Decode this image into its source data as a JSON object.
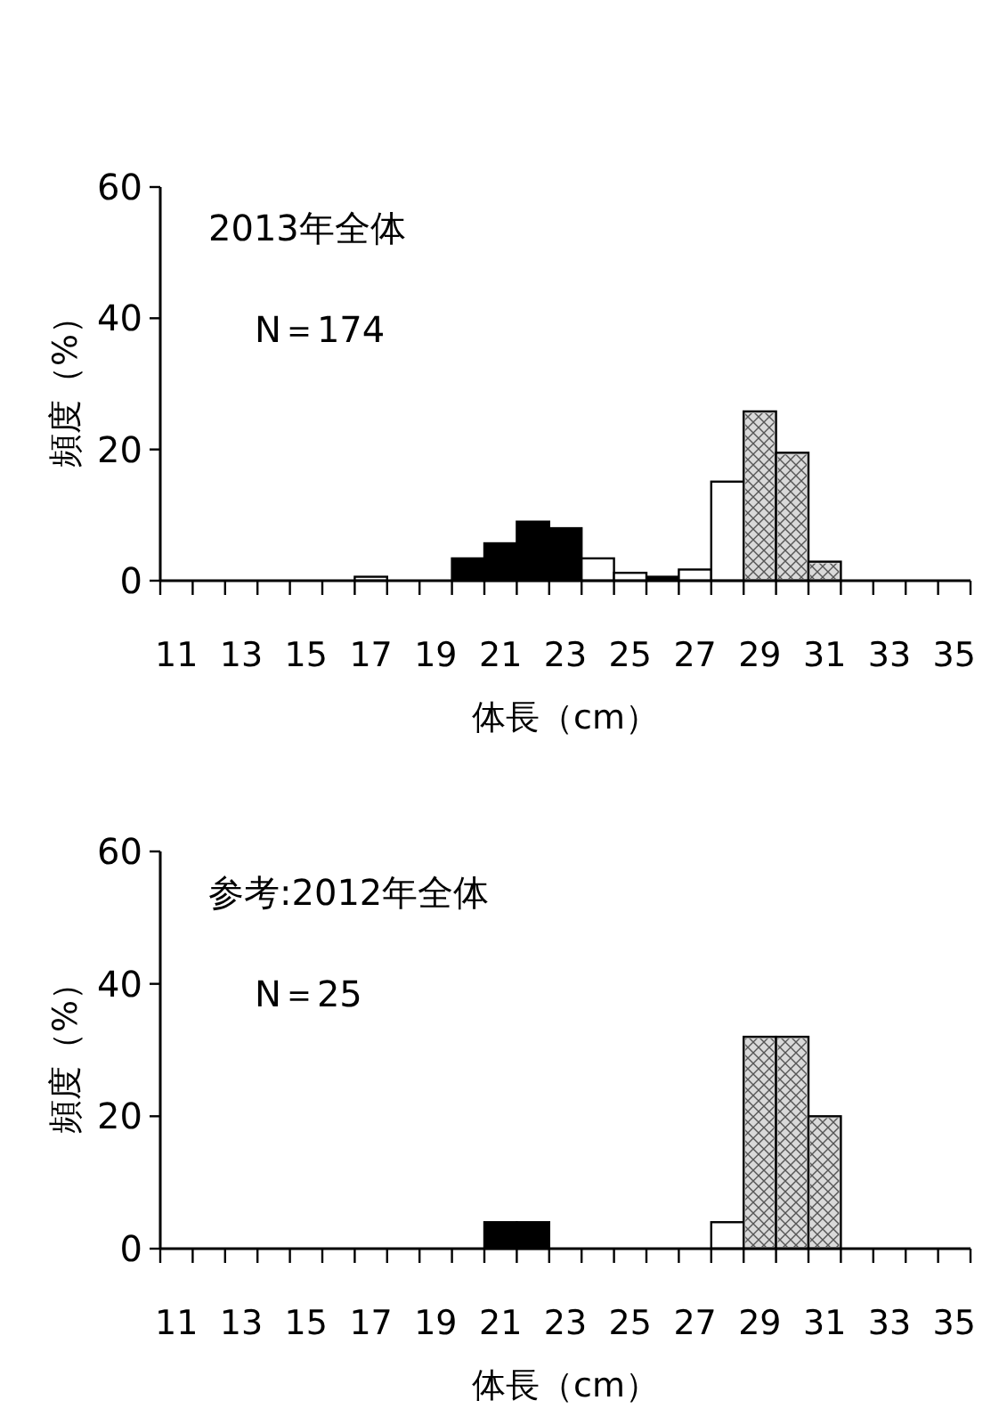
{
  "chart_data": [
    {
      "type": "bar",
      "xlabel": "体長（cm）",
      "ylabel": "頻度（%）",
      "ylim": [
        0,
        60
      ],
      "yticks": [
        0,
        20,
        40,
        60
      ],
      "annotations": [
        "2013年全体",
        "N＝174"
      ],
      "categories": [
        "11",
        null,
        "13",
        null,
        "15",
        null,
        "17",
        null,
        "19",
        null,
        "21",
        null,
        "23",
        null,
        "25",
        null,
        "27",
        null,
        "29",
        null,
        "31",
        null,
        "33",
        null,
        "35"
      ],
      "series": [
        {
          "color": "#000000",
          "values": [
            null,
            null,
            null,
            null,
            null,
            null,
            null,
            null,
            null,
            3.4,
            5.7,
            9.0,
            8.0,
            null,
            null,
            0.6,
            null,
            null,
            null,
            null,
            null,
            null,
            null,
            null,
            null
          ]
        },
        {
          "color": "#ffffff",
          "values": [
            0,
            0,
            0,
            0,
            0,
            0,
            0.6,
            0,
            0,
            null,
            null,
            null,
            null,
            3.4,
            1.2,
            null,
            1.7,
            15.1,
            null,
            null,
            null,
            0,
            0,
            0,
            0
          ]
        },
        {
          "color": "#d9d9d9",
          "values": [
            null,
            null,
            null,
            null,
            null,
            null,
            null,
            null,
            null,
            null,
            null,
            null,
            null,
            null,
            null,
            null,
            null,
            null,
            25.8,
            19.5,
            2.9,
            null,
            null,
            null,
            null
          ]
        }
      ]
    },
    {
      "type": "bar",
      "xlabel": "体長（cm）",
      "ylabel": "頻度（%）",
      "ylim": [
        0,
        60
      ],
      "yticks": [
        0,
        20,
        40,
        60
      ],
      "annotations": [
        "参考:2012年全体",
        "N＝25"
      ],
      "categories": [
        "11",
        null,
        "13",
        null,
        "15",
        null,
        "17",
        null,
        "19",
        null,
        "21",
        null,
        "23",
        null,
        "25",
        null,
        "27",
        null,
        "29",
        null,
        "31",
        null,
        "33",
        null,
        "35"
      ],
      "series": [
        {
          "color": "#000000",
          "values": [
            null,
            null,
            null,
            null,
            null,
            null,
            null,
            null,
            null,
            null,
            4,
            4,
            null,
            null,
            null,
            null,
            null,
            null,
            null,
            null,
            null,
            null,
            null,
            null,
            null
          ]
        },
        {
          "color": "#ffffff",
          "values": [
            0,
            0,
            0,
            0,
            0,
            0,
            0,
            0,
            0,
            0,
            null,
            null,
            0,
            0,
            0,
            0,
            0,
            4,
            null,
            null,
            null,
            0,
            0,
            0,
            0
          ]
        },
        {
          "color": "#d9d9d9",
          "values": [
            null,
            null,
            null,
            null,
            null,
            null,
            null,
            null,
            null,
            null,
            null,
            null,
            null,
            null,
            null,
            null,
            null,
            null,
            32,
            32,
            20,
            null,
            null,
            null,
            null
          ]
        }
      ]
    }
  ]
}
